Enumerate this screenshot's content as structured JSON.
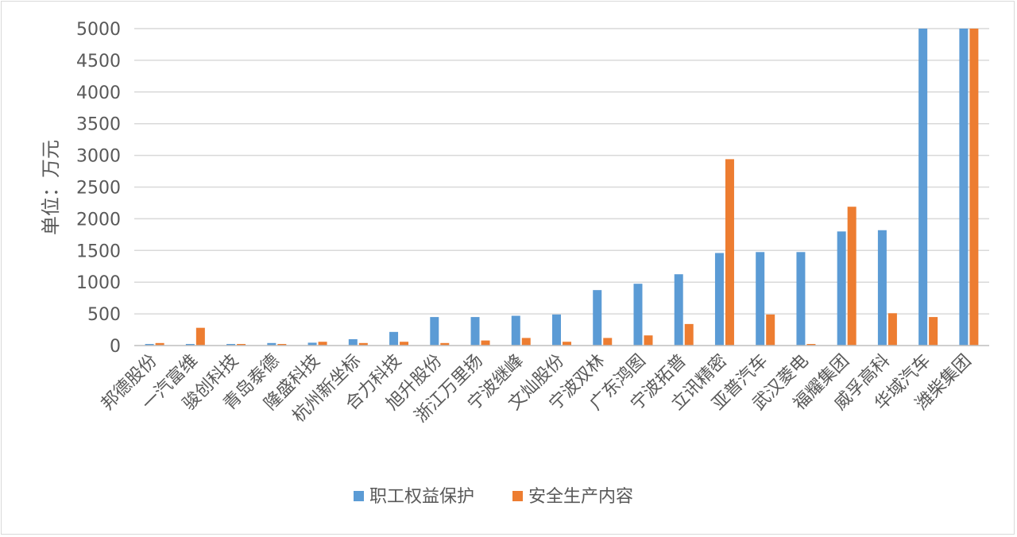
{
  "chart_data": {
    "type": "bar",
    "ylabel": "单位：万元",
    "ylim": [
      0,
      5000
    ],
    "yticks": [
      0,
      500,
      1000,
      1500,
      2000,
      2500,
      3000,
      3500,
      4000,
      4500,
      5000
    ],
    "grid": true,
    "legend_position": "bottom",
    "categories": [
      "邦德股份",
      "一汽富维",
      "骏创科技",
      "青岛泰德",
      "隆盛科技",
      "杭州新坐标",
      "合力科技",
      "旭升股份",
      "浙江万里扬",
      "宁波继峰",
      "文灿股份",
      "宁波双林",
      "广东鸿图",
      "宁波拓普",
      "立讯精密",
      "亚普汽车",
      "武汉菱电",
      "福耀集团",
      "威孚高科",
      "华域汽车",
      "潍柴集团"
    ],
    "series": [
      {
        "name": "职工权益保护",
        "color": "#5b9bd5",
        "values": [
          25,
          25,
          25,
          40,
          45,
          100,
          215,
          450,
          450,
          470,
          490,
          875,
          975,
          1125,
          1460,
          1475,
          1475,
          1800,
          1820,
          5000,
          5000
        ]
      },
      {
        "name": "安全生产内容",
        "color": "#ed7d31",
        "values": [
          40,
          280,
          25,
          25,
          60,
          40,
          60,
          40,
          80,
          120,
          60,
          120,
          160,
          340,
          2940,
          490,
          25,
          2190,
          510,
          450,
          5000
        ]
      }
    ]
  }
}
